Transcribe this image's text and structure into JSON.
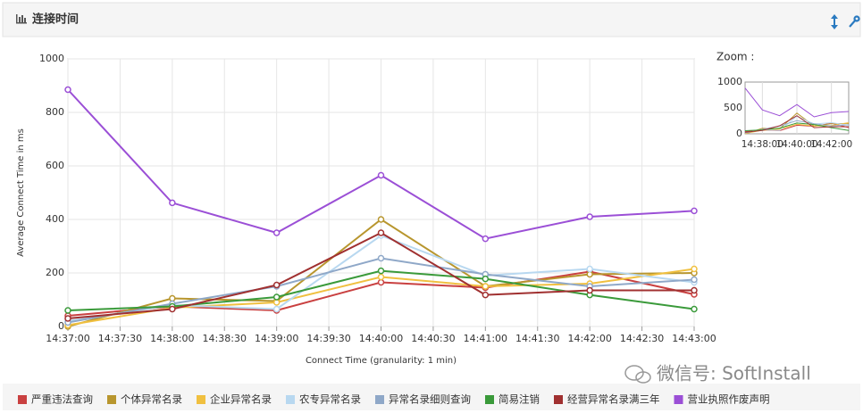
{
  "panel": {
    "title": "连接时间",
    "zoom_label": "Zoom :",
    "watermark": "微信号: SoftInstall"
  },
  "chart_data": {
    "type": "line",
    "ylabel": "Average Connect Time in ms",
    "xlabel": "Connect Time (granularity: 1 min)",
    "x": [
      "14:37:00",
      "14:38:00",
      "14:39:00",
      "14:40:00",
      "14:41:00",
      "14:42:00",
      "14:43:00"
    ],
    "xlim": [
      "14:37:00",
      "14:43:00"
    ],
    "xticks": [
      "14:37:00",
      "14:37:30",
      "14:38:00",
      "14:38:30",
      "14:39:00",
      "14:39:30",
      "14:40:00",
      "14:40:30",
      "14:41:00",
      "14:41:30",
      "14:42:00",
      "14:42:30",
      "14:43:00"
    ],
    "ylim": [
      0,
      1000
    ],
    "yticks": [
      0,
      200,
      400,
      600,
      800,
      1000
    ],
    "grid": true,
    "legend": "bottom",
    "series": [
      {
        "name": "严重违法查询",
        "color": "#c94040",
        "values": [
          40,
          75,
          60,
          165,
          145,
          205,
          120
        ]
      },
      {
        "name": "个体异常名录",
        "color": "#b8962e",
        "values": [
          0,
          105,
          95,
          400,
          150,
          195,
          200
        ]
      },
      {
        "name": "企业异常名录",
        "color": "#f0c040",
        "values": [
          5,
          70,
          90,
          185,
          150,
          160,
          215
        ]
      },
      {
        "name": "农专异常名录",
        "color": "#b8d8f0",
        "values": [
          20,
          80,
          65,
          340,
          190,
          215,
          165
        ]
      },
      {
        "name": "异常名录细则查询",
        "color": "#8fa8c8",
        "values": [
          15,
          85,
          150,
          255,
          195,
          150,
          175
        ]
      },
      {
        "name": "简易注销",
        "color": "#3a9a3a",
        "values": [
          60,
          75,
          110,
          208,
          178,
          118,
          65
        ]
      },
      {
        "name": "经营异常名录满三年",
        "color": "#a03030",
        "values": [
          30,
          65,
          155,
          350,
          118,
          135,
          135
        ]
      },
      {
        "name": "营业执照作废声明",
        "color": "#9b4fd6",
        "values": [
          885,
          462,
          350,
          565,
          328,
          410,
          432
        ]
      }
    ],
    "zoom": {
      "ylim": [
        0,
        1000
      ],
      "yticks": [
        0,
        500,
        1000
      ],
      "xticks": [
        "14:38:00",
        "14:40:00",
        "14:42:00"
      ]
    }
  }
}
